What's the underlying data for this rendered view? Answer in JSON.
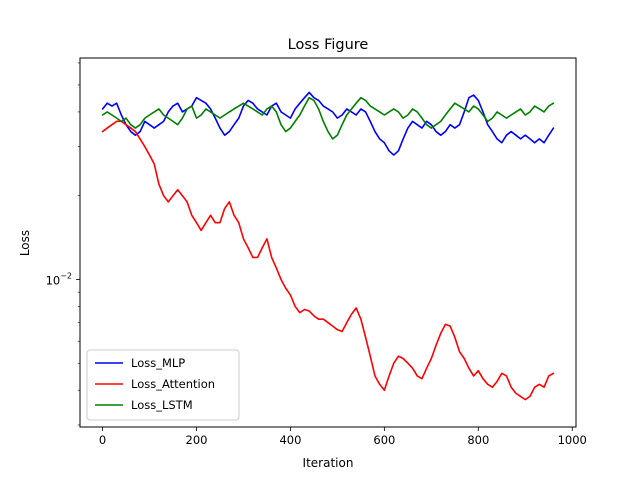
{
  "chart_data": {
    "type": "line",
    "title": "Loss Figure",
    "xlabel": "Iteration",
    "ylabel": "Loss",
    "y_scale": "log",
    "xlim": [
      -48,
      1008
    ],
    "ylim": [
      0.00295,
      0.0625
    ],
    "x_ticks": [
      0,
      200,
      400,
      600,
      800,
      1000
    ],
    "x_tick_labels": [
      "0",
      "200",
      "400",
      "600",
      "800",
      "1000"
    ],
    "y_major_tick": 0.01,
    "y_major_tick_label": "10",
    "y_major_tick_exp": "−2",
    "grid": false,
    "legend_position": "lower-left",
    "series": [
      {
        "name": "Loss_MLP",
        "color": "#0000ff",
        "points": [
          [
            0,
            0.041
          ],
          [
            10,
            0.043
          ],
          [
            20,
            0.042
          ],
          [
            30,
            0.043
          ],
          [
            40,
            0.039
          ],
          [
            50,
            0.036
          ],
          [
            60,
            0.034
          ],
          [
            70,
            0.033
          ],
          [
            80,
            0.034
          ],
          [
            90,
            0.037
          ],
          [
            100,
            0.036
          ],
          [
            110,
            0.035
          ],
          [
            120,
            0.036
          ],
          [
            130,
            0.037
          ],
          [
            140,
            0.04
          ],
          [
            150,
            0.042
          ],
          [
            160,
            0.043
          ],
          [
            170,
            0.04
          ],
          [
            180,
            0.041
          ],
          [
            190,
            0.042
          ],
          [
            200,
            0.045
          ],
          [
            210,
            0.044
          ],
          [
            220,
            0.043
          ],
          [
            230,
            0.041
          ],
          [
            240,
            0.038
          ],
          [
            250,
            0.035
          ],
          [
            260,
            0.033
          ],
          [
            270,
            0.034
          ],
          [
            280,
            0.036
          ],
          [
            290,
            0.038
          ],
          [
            300,
            0.042
          ],
          [
            310,
            0.044
          ],
          [
            320,
            0.043
          ],
          [
            330,
            0.041
          ],
          [
            340,
            0.04
          ],
          [
            350,
            0.039
          ],
          [
            360,
            0.042
          ],
          [
            370,
            0.043
          ],
          [
            380,
            0.04
          ],
          [
            390,
            0.039
          ],
          [
            400,
            0.038
          ],
          [
            410,
            0.041
          ],
          [
            420,
            0.043
          ],
          [
            430,
            0.045
          ],
          [
            440,
            0.047
          ],
          [
            450,
            0.045
          ],
          [
            460,
            0.044
          ],
          [
            470,
            0.042
          ],
          [
            480,
            0.041
          ],
          [
            490,
            0.04
          ],
          [
            500,
            0.038
          ],
          [
            510,
            0.039
          ],
          [
            520,
            0.041
          ],
          [
            530,
            0.04
          ],
          [
            540,
            0.039
          ],
          [
            550,
            0.041
          ],
          [
            560,
            0.04
          ],
          [
            570,
            0.037
          ],
          [
            580,
            0.034
          ],
          [
            590,
            0.032
          ],
          [
            600,
            0.031
          ],
          [
            610,
            0.029
          ],
          [
            620,
            0.028
          ],
          [
            630,
            0.029
          ],
          [
            640,
            0.032
          ],
          [
            650,
            0.035
          ],
          [
            660,
            0.037
          ],
          [
            670,
            0.036
          ],
          [
            680,
            0.035
          ],
          [
            690,
            0.037
          ],
          [
            700,
            0.036
          ],
          [
            710,
            0.034
          ],
          [
            720,
            0.033
          ],
          [
            730,
            0.034
          ],
          [
            740,
            0.036
          ],
          [
            750,
            0.035
          ],
          [
            760,
            0.036
          ],
          [
            770,
            0.04
          ],
          [
            780,
            0.045
          ],
          [
            790,
            0.046
          ],
          [
            800,
            0.044
          ],
          [
            810,
            0.04
          ],
          [
            820,
            0.036
          ],
          [
            830,
            0.034
          ],
          [
            840,
            0.032
          ],
          [
            850,
            0.031
          ],
          [
            860,
            0.033
          ],
          [
            870,
            0.034
          ],
          [
            880,
            0.033
          ],
          [
            890,
            0.032
          ],
          [
            900,
            0.033
          ],
          [
            910,
            0.032
          ],
          [
            920,
            0.031
          ],
          [
            930,
            0.032
          ],
          [
            940,
            0.031
          ],
          [
            950,
            0.033
          ],
          [
            960,
            0.035
          ]
        ]
      },
      {
        "name": "Loss_Attention",
        "color": "#ff0000",
        "points": [
          [
            0,
            0.034
          ],
          [
            10,
            0.035
          ],
          [
            20,
            0.036
          ],
          [
            30,
            0.037
          ],
          [
            40,
            0.037
          ],
          [
            50,
            0.036
          ],
          [
            60,
            0.035
          ],
          [
            70,
            0.034
          ],
          [
            80,
            0.032
          ],
          [
            90,
            0.03
          ],
          [
            100,
            0.028
          ],
          [
            110,
            0.026
          ],
          [
            120,
            0.022
          ],
          [
            130,
            0.02
          ],
          [
            140,
            0.019
          ],
          [
            150,
            0.02
          ],
          [
            160,
            0.021
          ],
          [
            170,
            0.02
          ],
          [
            180,
            0.019
          ],
          [
            190,
            0.017
          ],
          [
            200,
            0.016
          ],
          [
            210,
            0.015
          ],
          [
            220,
            0.016
          ],
          [
            230,
            0.017
          ],
          [
            240,
            0.016
          ],
          [
            250,
            0.016
          ],
          [
            260,
            0.018
          ],
          [
            270,
            0.019
          ],
          [
            280,
            0.017
          ],
          [
            290,
            0.016
          ],
          [
            300,
            0.014
          ],
          [
            310,
            0.013
          ],
          [
            320,
            0.012
          ],
          [
            330,
            0.012
          ],
          [
            340,
            0.013
          ],
          [
            350,
            0.014
          ],
          [
            360,
            0.012
          ],
          [
            370,
            0.011
          ],
          [
            380,
            0.01
          ],
          [
            390,
            0.0093
          ],
          [
            400,
            0.0088
          ],
          [
            410,
            0.008
          ],
          [
            420,
            0.0076
          ],
          [
            430,
            0.0078
          ],
          [
            440,
            0.0077
          ],
          [
            450,
            0.0074
          ],
          [
            460,
            0.0072
          ],
          [
            470,
            0.0072
          ],
          [
            480,
            0.007
          ],
          [
            490,
            0.0068
          ],
          [
            500,
            0.0066
          ],
          [
            510,
            0.0065
          ],
          [
            520,
            0.007
          ],
          [
            530,
            0.0075
          ],
          [
            540,
            0.0079
          ],
          [
            550,
            0.0072
          ],
          [
            560,
            0.0062
          ],
          [
            570,
            0.0053
          ],
          [
            580,
            0.0045
          ],
          [
            590,
            0.0042
          ],
          [
            600,
            0.004
          ],
          [
            610,
            0.0045
          ],
          [
            620,
            0.005
          ],
          [
            630,
            0.0053
          ],
          [
            640,
            0.0052
          ],
          [
            650,
            0.005
          ],
          [
            660,
            0.0048
          ],
          [
            670,
            0.0045
          ],
          [
            680,
            0.0044
          ],
          [
            690,
            0.0048
          ],
          [
            700,
            0.0052
          ],
          [
            710,
            0.0058
          ],
          [
            720,
            0.0064
          ],
          [
            730,
            0.0069
          ],
          [
            740,
            0.0068
          ],
          [
            750,
            0.0062
          ],
          [
            760,
            0.0055
          ],
          [
            770,
            0.0052
          ],
          [
            780,
            0.0048
          ],
          [
            790,
            0.0045
          ],
          [
            800,
            0.0047
          ],
          [
            810,
            0.0044
          ],
          [
            820,
            0.0042
          ],
          [
            830,
            0.0041
          ],
          [
            840,
            0.0043
          ],
          [
            850,
            0.0046
          ],
          [
            860,
            0.0045
          ],
          [
            870,
            0.0041
          ],
          [
            880,
            0.0039
          ],
          [
            890,
            0.0038
          ],
          [
            900,
            0.0037
          ],
          [
            910,
            0.0038
          ],
          [
            920,
            0.0041
          ],
          [
            930,
            0.0042
          ],
          [
            940,
            0.0041
          ],
          [
            950,
            0.0045
          ],
          [
            960,
            0.0046
          ]
        ]
      },
      {
        "name": "Loss_LSTM",
        "color": "#008000",
        "points": [
          [
            0,
            0.039
          ],
          [
            10,
            0.04
          ],
          [
            20,
            0.039
          ],
          [
            30,
            0.038
          ],
          [
            40,
            0.037
          ],
          [
            50,
            0.038
          ],
          [
            60,
            0.036
          ],
          [
            70,
            0.035
          ],
          [
            80,
            0.036
          ],
          [
            90,
            0.038
          ],
          [
            100,
            0.039
          ],
          [
            110,
            0.04
          ],
          [
            120,
            0.041
          ],
          [
            130,
            0.039
          ],
          [
            140,
            0.038
          ],
          [
            150,
            0.037
          ],
          [
            160,
            0.036
          ],
          [
            170,
            0.038
          ],
          [
            180,
            0.041
          ],
          [
            190,
            0.042
          ],
          [
            200,
            0.038
          ],
          [
            210,
            0.039
          ],
          [
            220,
            0.041
          ],
          [
            230,
            0.04
          ],
          [
            240,
            0.039
          ],
          [
            250,
            0.038
          ],
          [
            260,
            0.039
          ],
          [
            270,
            0.04
          ],
          [
            280,
            0.041
          ],
          [
            290,
            0.042
          ],
          [
            300,
            0.043
          ],
          [
            310,
            0.042
          ],
          [
            320,
            0.041
          ],
          [
            330,
            0.04
          ],
          [
            340,
            0.039
          ],
          [
            350,
            0.041
          ],
          [
            360,
            0.042
          ],
          [
            370,
            0.04
          ],
          [
            380,
            0.036
          ],
          [
            390,
            0.034
          ],
          [
            400,
            0.035
          ],
          [
            410,
            0.037
          ],
          [
            420,
            0.039
          ],
          [
            430,
            0.042
          ],
          [
            440,
            0.045
          ],
          [
            450,
            0.044
          ],
          [
            460,
            0.041
          ],
          [
            470,
            0.037
          ],
          [
            480,
            0.034
          ],
          [
            490,
            0.032
          ],
          [
            500,
            0.033
          ],
          [
            510,
            0.036
          ],
          [
            520,
            0.039
          ],
          [
            530,
            0.041
          ],
          [
            540,
            0.043
          ],
          [
            550,
            0.045
          ],
          [
            560,
            0.044
          ],
          [
            570,
            0.042
          ],
          [
            580,
            0.041
          ],
          [
            590,
            0.04
          ],
          [
            600,
            0.039
          ],
          [
            610,
            0.04
          ],
          [
            620,
            0.041
          ],
          [
            630,
            0.04
          ],
          [
            640,
            0.038
          ],
          [
            650,
            0.039
          ],
          [
            660,
            0.041
          ],
          [
            670,
            0.04
          ],
          [
            680,
            0.038
          ],
          [
            690,
            0.036
          ],
          [
            700,
            0.035
          ],
          [
            710,
            0.036
          ],
          [
            720,
            0.037
          ],
          [
            730,
            0.039
          ],
          [
            740,
            0.041
          ],
          [
            750,
            0.043
          ],
          [
            760,
            0.042
          ],
          [
            770,
            0.041
          ],
          [
            780,
            0.04
          ],
          [
            790,
            0.042
          ],
          [
            800,
            0.041
          ],
          [
            810,
            0.039
          ],
          [
            820,
            0.037
          ],
          [
            830,
            0.038
          ],
          [
            840,
            0.04
          ],
          [
            850,
            0.039
          ],
          [
            860,
            0.038
          ],
          [
            870,
            0.039
          ],
          [
            880,
            0.04
          ],
          [
            890,
            0.041
          ],
          [
            900,
            0.039
          ],
          [
            910,
            0.04
          ],
          [
            920,
            0.042
          ],
          [
            930,
            0.041
          ],
          [
            940,
            0.04
          ],
          [
            950,
            0.042
          ],
          [
            960,
            0.043
          ]
        ]
      }
    ]
  }
}
